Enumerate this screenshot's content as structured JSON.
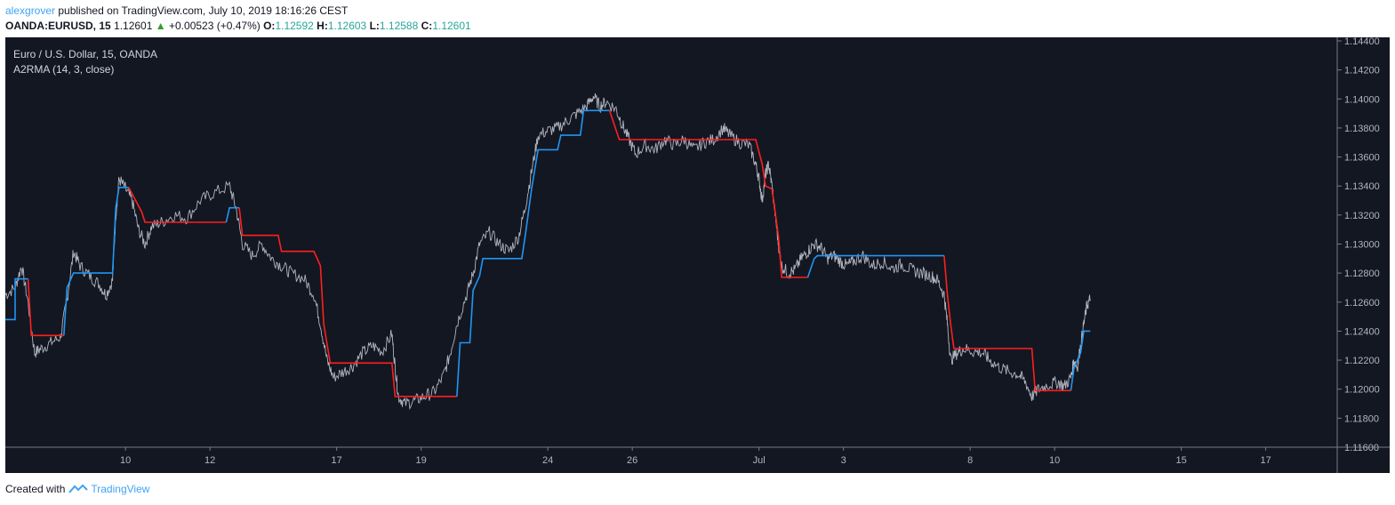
{
  "header": {
    "user": "alexgrover",
    "published": " published on TradingView.com, July 10, 2019 18:16:26 CEST",
    "symbol": "OANDA:EURUSD, 15",
    "last": "1.12601",
    "change": "+0.00523 (+0.47%)",
    "o_label": "O:",
    "o_value": "1.12592",
    "h_label": "H:",
    "h_value": "1.12603",
    "l_label": "L:",
    "l_value": "1.12588",
    "c_label": "C:",
    "c_value": "1.12601"
  },
  "legend": {
    "title": "Euro / U.S. Dollar, 15, OANDA",
    "indicator": "A2RMA (14, 3, close)"
  },
  "footer": {
    "created_with": "Created with",
    "brand": "TradingView"
  },
  "colors": {
    "background": "#131722",
    "price": "#b2b5be",
    "up": "#2196f3",
    "down": "#ff1f1f",
    "axis_text": "#b2b5be"
  },
  "chart_data": {
    "type": "line",
    "ylim": [
      1.116,
      1.144
    ],
    "xlim": [
      0,
      41.0
    ],
    "ytick_values": [
      1.116,
      1.118,
      1.12,
      1.122,
      1.124,
      1.126,
      1.128,
      1.13,
      1.132,
      1.134,
      1.136,
      1.138,
      1.14,
      1.142,
      1.144
    ],
    "ytick_labels": [
      "1.11600",
      "1.11800",
      "1.12000",
      "1.12200",
      "1.12400",
      "1.12600",
      "1.12800",
      "1.13000",
      "1.13200",
      "1.13400",
      "1.13600",
      "1.13800",
      "1.14000",
      "1.14200",
      "1.14400"
    ],
    "xticks": [
      {
        "x": 3.7,
        "label": "10"
      },
      {
        "x": 6.3,
        "label": "12"
      },
      {
        "x": 10.2,
        "label": "17"
      },
      {
        "x": 12.8,
        "label": "19"
      },
      {
        "x": 16.7,
        "label": "24"
      },
      {
        "x": 19.3,
        "label": "26"
      },
      {
        "x": 23.2,
        "label": "Jul"
      },
      {
        "x": 25.8,
        "label": "3"
      },
      {
        "x": 29.7,
        "label": "8"
      },
      {
        "x": 32.3,
        "label": "10"
      },
      {
        "x": 36.2,
        "label": "15"
      },
      {
        "x": 38.8,
        "label": "17"
      }
    ],
    "series": [
      {
        "name": "EURUSD",
        "color": "#b2b5be",
        "points": [
          [
            0.0,
            1.1265
          ],
          [
            0.3,
            1.127
          ],
          [
            0.5,
            1.1285
          ],
          [
            0.7,
            1.126
          ],
          [
            0.9,
            1.1225
          ],
          [
            1.1,
            1.1228
          ],
          [
            1.4,
            1.1232
          ],
          [
            1.7,
            1.1236
          ],
          [
            1.9,
            1.1262
          ],
          [
            2.1,
            1.1295
          ],
          [
            2.3,
            1.1285
          ],
          [
            2.6,
            1.1278
          ],
          [
            2.9,
            1.1272
          ],
          [
            3.1,
            1.1265
          ],
          [
            3.3,
            1.1275
          ],
          [
            3.4,
            1.132
          ],
          [
            3.5,
            1.1345
          ],
          [
            3.7,
            1.1338
          ],
          [
            3.9,
            1.133
          ],
          [
            4.1,
            1.131
          ],
          [
            4.3,
            1.13
          ],
          [
            4.5,
            1.1312
          ],
          [
            4.8,
            1.1315
          ],
          [
            5.2,
            1.132
          ],
          [
            5.6,
            1.1318
          ],
          [
            6.0,
            1.133
          ],
          [
            6.4,
            1.1335
          ],
          [
            6.9,
            1.134
          ],
          [
            7.1,
            1.1325
          ],
          [
            7.3,
            1.13
          ],
          [
            7.6,
            1.1292
          ],
          [
            7.9,
            1.13
          ],
          [
            8.2,
            1.129
          ],
          [
            8.5,
            1.1285
          ],
          [
            8.8,
            1.128
          ],
          [
            9.2,
            1.1276
          ],
          [
            9.5,
            1.1265
          ],
          [
            9.7,
            1.1245
          ],
          [
            9.9,
            1.122
          ],
          [
            10.1,
            1.1208
          ],
          [
            10.4,
            1.1212
          ],
          [
            10.7,
            1.1216
          ],
          [
            11.0,
            1.1225
          ],
          [
            11.3,
            1.123
          ],
          [
            11.6,
            1.1226
          ],
          [
            11.9,
            1.1238
          ],
          [
            12.0,
            1.1215
          ],
          [
            12.1,
            1.1195
          ],
          [
            12.3,
            1.119
          ],
          [
            12.6,
            1.1192
          ],
          [
            12.9,
            1.1195
          ],
          [
            13.2,
            1.1198
          ],
          [
            13.5,
            1.121
          ],
          [
            13.7,
            1.1225
          ],
          [
            13.9,
            1.1245
          ],
          [
            14.2,
            1.1265
          ],
          [
            14.4,
            1.128
          ],
          [
            14.6,
            1.13
          ],
          [
            14.9,
            1.1308
          ],
          [
            15.2,
            1.13
          ],
          [
            15.5,
            1.1295
          ],
          [
            15.8,
            1.1305
          ],
          [
            16.0,
            1.1325
          ],
          [
            16.2,
            1.135
          ],
          [
            16.4,
            1.1375
          ],
          [
            16.7,
            1.1378
          ],
          [
            17.0,
            1.138
          ],
          [
            17.3,
            1.1385
          ],
          [
            17.6,
            1.139
          ],
          [
            17.9,
            1.1395
          ],
          [
            18.1,
            1.1402
          ],
          [
            18.3,
            1.1395
          ],
          [
            18.5,
            1.1398
          ],
          [
            18.8,
            1.1393
          ],
          [
            19.0,
            1.1382
          ],
          [
            19.2,
            1.1372
          ],
          [
            19.4,
            1.1362
          ],
          [
            19.7,
            1.1368
          ],
          [
            20.0,
            1.1365
          ],
          [
            20.3,
            1.1372
          ],
          [
            20.6,
            1.1368
          ],
          [
            20.9,
            1.1372
          ],
          [
            21.2,
            1.1365
          ],
          [
            21.5,
            1.137
          ],
          [
            21.8,
            1.1372
          ],
          [
            22.1,
            1.138
          ],
          [
            22.3,
            1.1375
          ],
          [
            22.6,
            1.137
          ],
          [
            22.9,
            1.1368
          ],
          [
            23.1,
            1.1355
          ],
          [
            23.2,
            1.1345
          ],
          [
            23.3,
            1.133
          ],
          [
            23.4,
            1.1348
          ],
          [
            23.5,
            1.1355
          ],
          [
            23.6,
            1.134
          ],
          [
            23.7,
            1.132
          ],
          [
            23.8,
            1.13
          ],
          [
            23.9,
            1.1285
          ],
          [
            24.1,
            1.128
          ],
          [
            24.3,
            1.1282
          ],
          [
            24.5,
            1.129
          ],
          [
            24.7,
            1.1295
          ],
          [
            24.9,
            1.13
          ],
          [
            25.1,
            1.1298
          ],
          [
            25.3,
            1.129
          ],
          [
            25.5,
            1.1292
          ],
          [
            25.7,
            1.1288
          ],
          [
            25.9,
            1.1285
          ],
          [
            26.1,
            1.1288
          ],
          [
            26.4,
            1.1292
          ],
          [
            26.7,
            1.1285
          ],
          [
            27.0,
            1.1288
          ],
          [
            27.3,
            1.1283
          ],
          [
            27.6,
            1.1286
          ],
          [
            27.9,
            1.1282
          ],
          [
            28.2,
            1.128
          ],
          [
            28.5,
            1.1278
          ],
          [
            28.7,
            1.1275
          ],
          [
            28.9,
            1.1265
          ],
          [
            29.0,
            1.1245
          ],
          [
            29.1,
            1.122
          ],
          [
            29.3,
            1.1225
          ],
          [
            29.5,
            1.1228
          ],
          [
            29.8,
            1.1226
          ],
          [
            30.1,
            1.1225
          ],
          [
            30.3,
            1.122
          ],
          [
            30.6,
            1.1215
          ],
          [
            30.9,
            1.1212
          ],
          [
            31.2,
            1.121
          ],
          [
            31.4,
            1.1205
          ],
          [
            31.6,
            1.1195
          ],
          [
            31.8,
            1.12
          ],
          [
            32.1,
            1.1203
          ],
          [
            32.4,
            1.1205
          ],
          [
            32.6,
            1.1202
          ],
          [
            32.8,
            1.1208
          ],
          [
            32.9,
            1.122
          ],
          [
            33.0,
            1.1215
          ],
          [
            33.1,
            1.123
          ],
          [
            33.2,
            1.1245
          ],
          [
            33.3,
            1.1258
          ],
          [
            33.4,
            1.1262
          ]
        ]
      },
      {
        "name": "A2RMA",
        "segments": [
          {
            "color": "#2196f3",
            "points": [
              [
                0.0,
                1.1248
              ],
              [
                0.3,
                1.1248
              ],
              [
                0.3,
                1.1276
              ],
              [
                0.7,
                1.1276
              ]
            ]
          },
          {
            "color": "#ff1f1f",
            "points": [
              [
                0.7,
                1.1276
              ],
              [
                0.8,
                1.1237
              ],
              [
                1.8,
                1.1237
              ]
            ]
          },
          {
            "color": "#2196f3",
            "points": [
              [
                1.8,
                1.1237
              ],
              [
                1.9,
                1.127
              ],
              [
                2.1,
                1.128
              ],
              [
                3.3,
                1.128
              ],
              [
                3.4,
                1.1325
              ],
              [
                3.5,
                1.1339
              ],
              [
                3.8,
                1.1339
              ]
            ]
          },
          {
            "color": "#ff1f1f",
            "points": [
              [
                3.8,
                1.1339
              ],
              [
                4.2,
                1.1322
              ],
              [
                4.3,
                1.1315
              ],
              [
                6.8,
                1.1315
              ]
            ]
          },
          {
            "color": "#2196f3",
            "points": [
              [
                6.8,
                1.1315
              ],
              [
                6.9,
                1.1325
              ],
              [
                7.2,
                1.1325
              ]
            ]
          },
          {
            "color": "#ff1f1f",
            "points": [
              [
                7.2,
                1.1325
              ],
              [
                7.3,
                1.1306
              ],
              [
                8.4,
                1.1306
              ],
              [
                8.5,
                1.1295
              ],
              [
                9.5,
                1.1295
              ],
              [
                9.7,
                1.1285
              ],
              [
                9.8,
                1.1245
              ],
              [
                10.0,
                1.1218
              ],
              [
                11.9,
                1.1218
              ],
              [
                12.0,
                1.1195
              ],
              [
                13.9,
                1.1195
              ]
            ]
          },
          {
            "color": "#2196f3",
            "points": [
              [
                13.9,
                1.1195
              ],
              [
                14.0,
                1.1232
              ],
              [
                14.3,
                1.1232
              ],
              [
                14.4,
                1.1268
              ],
              [
                14.6,
                1.1278
              ],
              [
                14.7,
                1.129
              ],
              [
                15.9,
                1.129
              ],
              [
                16.0,
                1.1305
              ],
              [
                16.2,
                1.1338
              ],
              [
                16.4,
                1.1365
              ],
              [
                17.0,
                1.1365
              ],
              [
                17.1,
                1.1375
              ],
              [
                17.7,
                1.1375
              ],
              [
                17.8,
                1.1392
              ],
              [
                18.6,
                1.1392
              ]
            ]
          },
          {
            "color": "#ff1f1f",
            "points": [
              [
                18.6,
                1.1392
              ],
              [
                18.9,
                1.1372
              ],
              [
                23.1,
                1.1372
              ],
              [
                23.3,
                1.1355
              ],
              [
                23.4,
                1.134
              ],
              [
                23.6,
                1.1338
              ],
              [
                23.8,
                1.1305
              ],
              [
                23.9,
                1.1277
              ],
              [
                24.7,
                1.1277
              ]
            ]
          },
          {
            "color": "#2196f3",
            "points": [
              [
                24.7,
                1.1277
              ],
              [
                24.9,
                1.129
              ],
              [
                25.0,
                1.1292
              ],
              [
                28.9,
                1.1292
              ]
            ]
          },
          {
            "color": "#ff1f1f",
            "points": [
              [
                28.9,
                1.1292
              ],
              [
                29.0,
                1.1265
              ],
              [
                29.1,
                1.1245
              ],
              [
                29.2,
                1.1228
              ],
              [
                31.6,
                1.1228
              ],
              [
                31.7,
                1.1199
              ],
              [
                32.8,
                1.1199
              ]
            ]
          },
          {
            "color": "#2196f3",
            "points": [
              [
                32.8,
                1.1199
              ],
              [
                32.9,
                1.1215
              ],
              [
                33.1,
                1.1225
              ],
              [
                33.2,
                1.124
              ],
              [
                33.4,
                1.124
              ]
            ]
          }
        ]
      }
    ]
  }
}
